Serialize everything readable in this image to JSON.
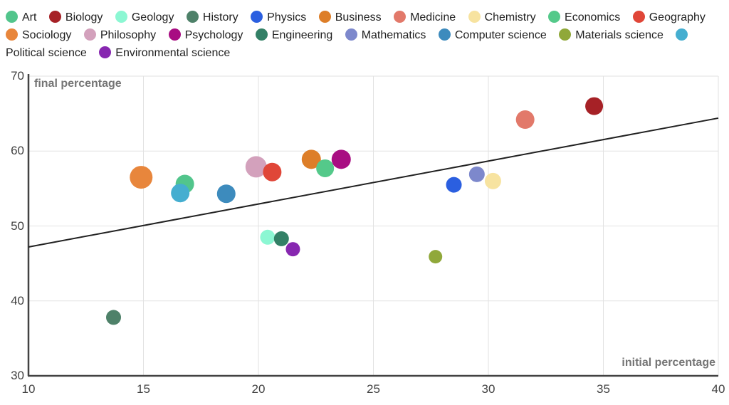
{
  "chart_data": {
    "type": "scatter",
    "title": "",
    "xlabel": "initial percentage",
    "ylabel": "final percentage",
    "xlim": [
      10,
      40
    ],
    "ylim": [
      30,
      70
    ],
    "x_ticks": [
      10,
      15,
      20,
      25,
      30,
      35,
      40
    ],
    "y_ticks": [
      30,
      40,
      50,
      60,
      70
    ],
    "grid": true,
    "legend_position": "top",
    "axis_color": "#424242",
    "gridline_color": "#e2e2e2",
    "trend_line": {
      "x1": 10,
      "y1": 47.2,
      "x2": 40,
      "y2": 64.4,
      "color": "#212121"
    },
    "series": [
      {
        "name": "Art",
        "color": "#52c58c",
        "x": 16.8,
        "y": 55.6,
        "r": 13
      },
      {
        "name": "Biology",
        "color": "#a62126",
        "x": 34.6,
        "y": 66.0,
        "r": 12.5
      },
      {
        "name": "Geology",
        "color": "#8cf7d3",
        "x": 20.4,
        "y": 48.5,
        "r": 10.5
      },
      {
        "name": "History",
        "color": "#4e8169",
        "x": 13.7,
        "y": 37.8,
        "r": 10.5
      },
      {
        "name": "Physics",
        "color": "#2b5fe0",
        "x": 28.5,
        "y": 55.5,
        "r": 11
      },
      {
        "name": "Business",
        "color": "#dd7e28",
        "x": 22.3,
        "y": 58.9,
        "r": 13.5
      },
      {
        "name": "Medicine",
        "color": "#e2796a",
        "x": 31.6,
        "y": 64.2,
        "r": 13
      },
      {
        "name": "Chemistry",
        "color": "#f7e3a0",
        "x": 30.2,
        "y": 56.0,
        "r": 11.5
      },
      {
        "name": "Economics",
        "color": "#54c98a",
        "x": 22.9,
        "y": 57.7,
        "r": 12.5
      },
      {
        "name": "Geography",
        "color": "#e04638",
        "x": 20.6,
        "y": 57.2,
        "r": 13
      },
      {
        "name": "Sociology",
        "color": "#e8863c",
        "x": 14.9,
        "y": 56.5,
        "r": 16
      },
      {
        "name": "Philosophy",
        "color": "#d3a1bc",
        "x": 19.9,
        "y": 57.9,
        "r": 15
      },
      {
        "name": "Psychology",
        "color": "#a80d82",
        "x": 23.6,
        "y": 58.9,
        "r": 13.5
      },
      {
        "name": "Engineering",
        "color": "#338066",
        "x": 21.0,
        "y": 48.3,
        "r": 10.5
      },
      {
        "name": "Mathematics",
        "color": "#7d88cc",
        "x": 29.5,
        "y": 56.9,
        "r": 11
      },
      {
        "name": "Computer science",
        "color": "#3d8bbd",
        "x": 18.6,
        "y": 54.3,
        "r": 13
      },
      {
        "name": "Materials science",
        "color": "#90a83a",
        "x": 27.7,
        "y": 45.9,
        "r": 9.5
      },
      {
        "name": "Political science",
        "color": "#45aed0",
        "x": 16.6,
        "y": 54.4,
        "r": 13
      },
      {
        "name": "Environmental science",
        "color": "#8727b0",
        "x": 21.5,
        "y": 46.9,
        "r": 10
      }
    ],
    "draw_order": [
      "History",
      "Sociology",
      "Art",
      "Political science",
      "Computer science",
      "Philosophy",
      "Geography",
      "Business",
      "Economics",
      "Psychology",
      "Geology",
      "Engineering",
      "Environmental science",
      "Materials science",
      "Physics",
      "Mathematics",
      "Chemistry",
      "Medicine",
      "Biology"
    ]
  }
}
